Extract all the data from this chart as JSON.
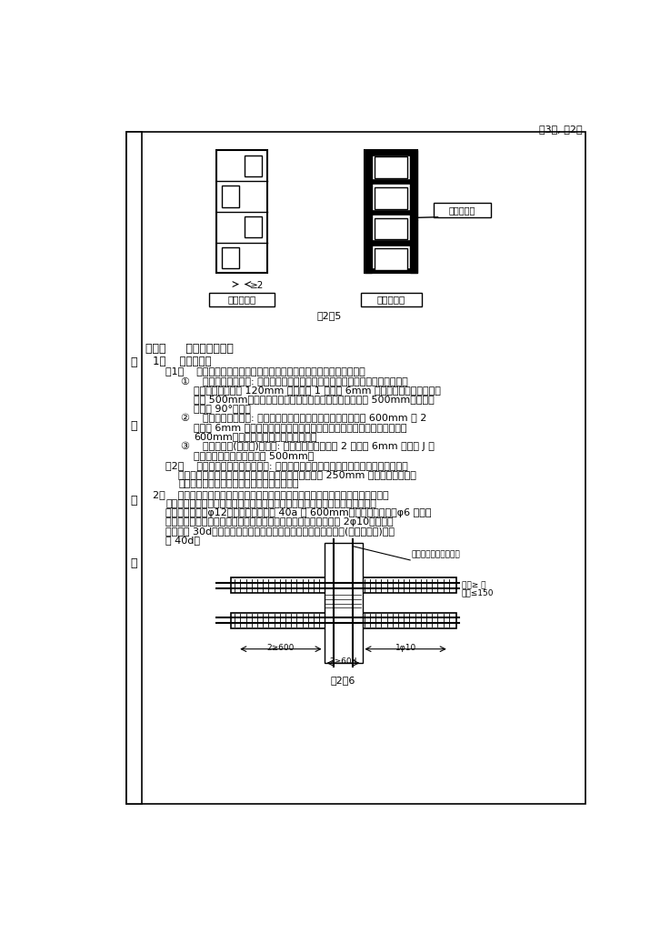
{
  "page_header": "共3页, 第2页",
  "fig25_caption": "图2－5",
  "fig26_caption": "图2－6",
  "label_left": "一般错洞墙",
  "label_right": "叠合错洞墙",
  "annotation_text": "暗框架配筋",
  "section_title": "（三）     施工洞构造要求",
  "line1": "1、    砌体结构。",
  "line2": "（1）    在砌体上留施工洞时，洞口顶部必须设置过梁。洞口构造如下：",
  "line3a": "①    烧结普通粘土砖墙: 洞口两侧须留成直槎，但必须做成凸槎，并加设拉结筋，",
  "line3b": "拉结筋的数量为每 120mm 墙厚放置 1 根直径 6mm 的钢筋，间距沿墙高不得",
  "line3c": "超过 500mm，埋入长度从墙的留槎处算起，每边均不小于 500mm，钢筋末",
  "line3d": "端应有 90°弯钩。",
  "line4a": "②    混凝土空心砌块墙: 在洞顶部设置混凝土过梁。洞口两侧每隔 600mm 设 2",
  "line4b": "根直径 6mm 的拉结筋。拉结筋埋入长度，从留槎处算起，每边均不应小于",
  "line4c": "600mm，钢筋外露部分不得任意弯折。",
  "line5a": "③    加气混凝土(粉煤灰)砌块墙: 施工洞口上部应放置 2 根直径 6mm 的钢筋 J 申",
  "line5b": "过洞口两边长度每边不小于 500mm。",
  "line6a": "（2）    过梁的设置。过梁的形式有: 砌筑钢筋砖过梁、实心砖平拱式过梁、现浇或预制",
  "line6b": "混凝土过梁。选择过梁长度时，一定要保证每边不小于 250mm 的支承长度。过梁",
  "line6c": "的断面尺寸及配筋一定要经过计算方能确定。",
  "line7": "2、    钢筋混凝土结构。在钢筋混凝土墙上留施工洞，在无暗框架时，洞顶必须设置过",
  "line7b": "梁，其钢筋应按计算配置，并应征得设计人员同意。并不得低于下述构造要求，",
  "line7c": "在八度区不少于φ12，锚固长度不少于 40a 和 600mm。箍筋直径最小为φ6 纵向钢",
  "line7d": "筋端头，如下图所示。洞口两侧应设置竖向构造钢筋，每边不少于 2φ10，锚固长",
  "line7e": "度不少于 30d。洞口处原墙体水平、竖向配筋应断开，断开长度(即外露长度)不少",
  "line7f": "于 40d。",
  "fig26_label1": "按计算确定直径和根数",
  "fig26_label2": "墙厚≥ 和",
  "fig26_label3": "间距≤150",
  "fig26_dim1": "2≥600",
  "fig26_dim2": "2≥60d",
  "fig26_dim3": "1φ10",
  "background_color": "#ffffff",
  "text_color": "#000000"
}
